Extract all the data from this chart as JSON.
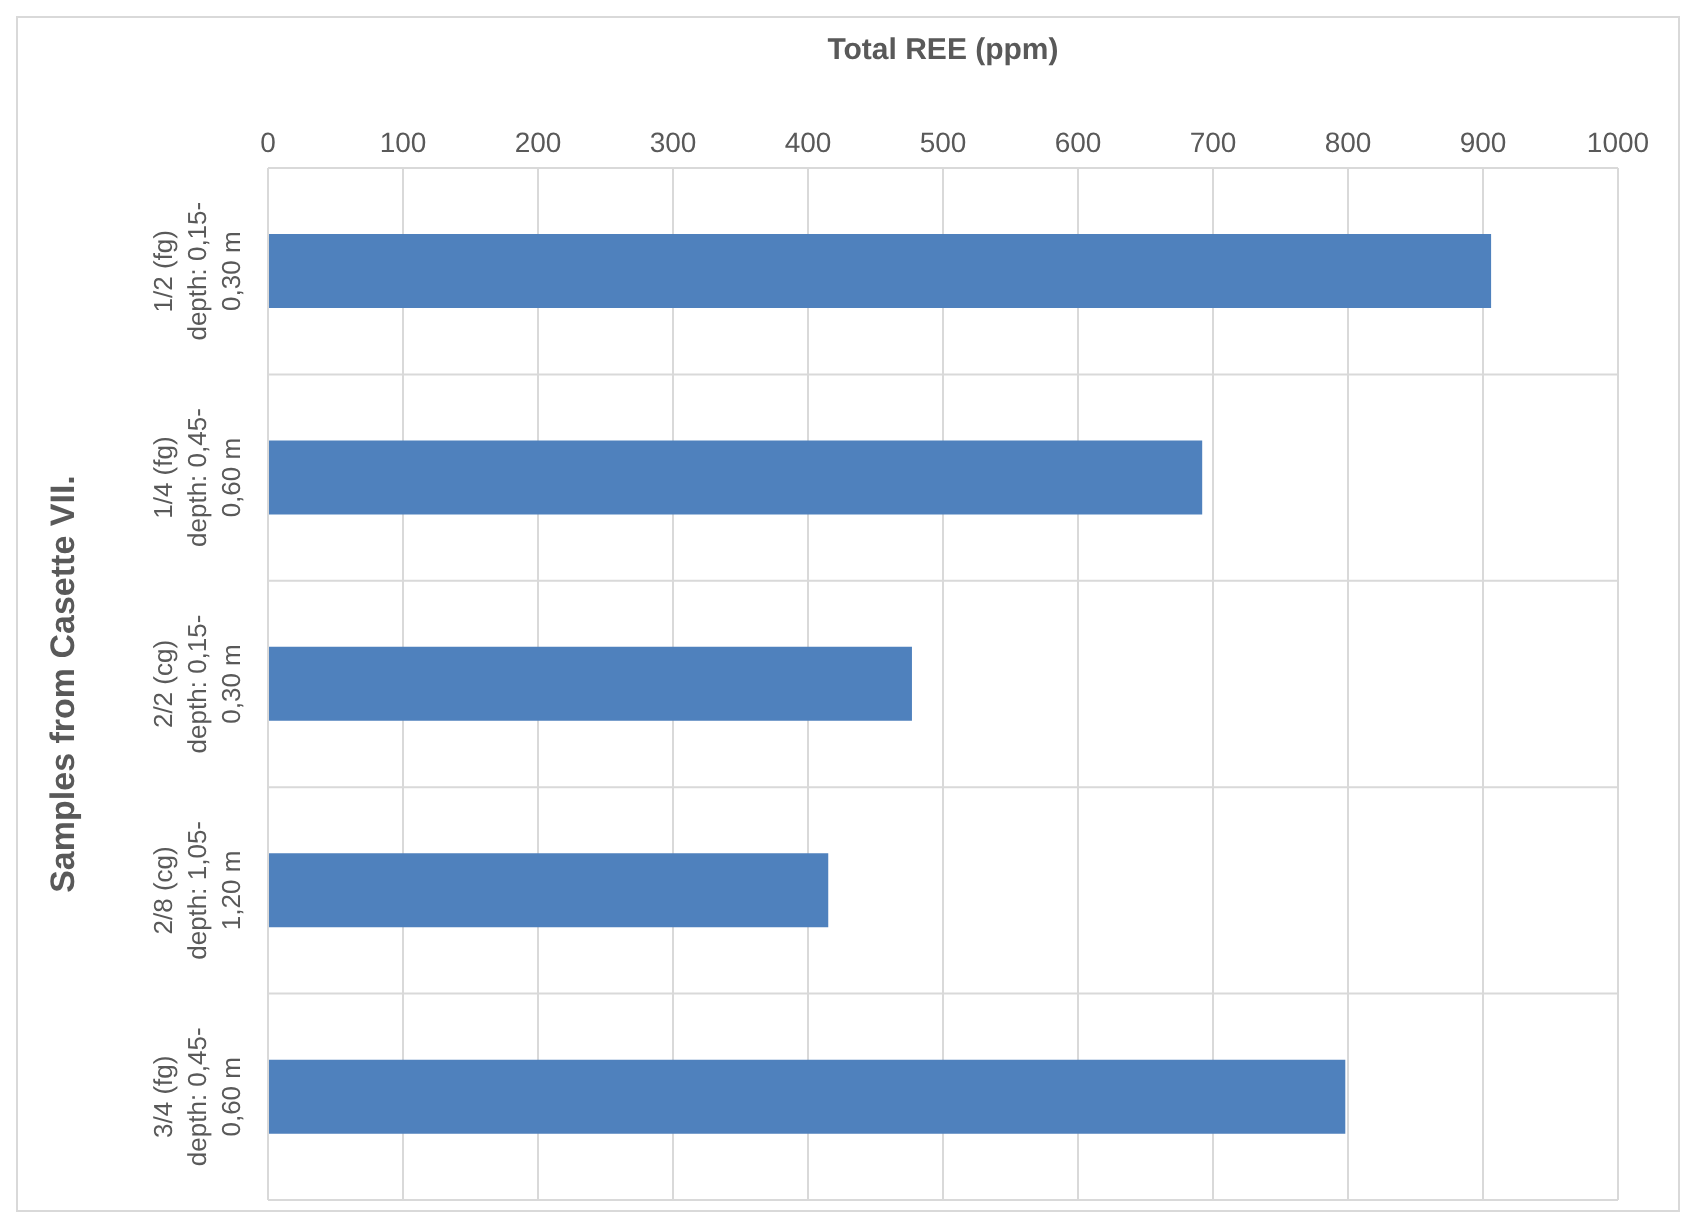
{
  "chart_data": {
    "type": "bar",
    "orientation": "horizontal",
    "xlabel": "Total REE (ppm)",
    "ylabel": "Samples from Casette VII.",
    "categories": [
      "1/2 (fg) depth: 0,15-0,30 m",
      "1/4 (fg) depth: 0,45-0,60 m",
      "2/2 (cg) depth: 0,15-0,30 m",
      "2/8 (cg) depth: 1,05-1,20 m",
      "3/4 (fg) depth: 0,45-0,60 m"
    ],
    "values": [
      906,
      692,
      477,
      415,
      798
    ],
    "color": "#4f81bd",
    "xlim": [
      0,
      1000
    ],
    "xticks": [
      0,
      100,
      200,
      300,
      400,
      500,
      600,
      700,
      800,
      900,
      1000
    ],
    "grid": true,
    "legend": false
  }
}
